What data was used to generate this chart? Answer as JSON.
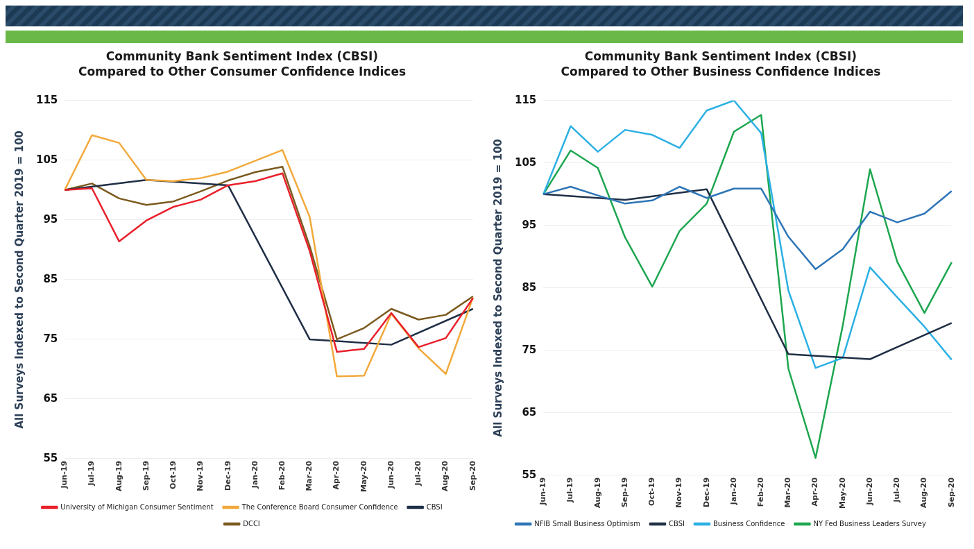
{
  "chart_data": [
    {
      "type": "line",
      "title": "Community Bank Sentiment Index (CBSI)",
      "subtitle": "Compared to Other Consumer Confidence Indices",
      "ylabel": "All Surveys Indexed to Second Quarter 2019 = 100",
      "categories": [
        "Jun-19",
        "Jul-19",
        "Aug-19",
        "Sep-19",
        "Oct-19",
        "Nov-19",
        "Dec-19",
        "Jan-20",
        "Feb-20",
        "Mar-20",
        "Apr-20",
        "May-20",
        "Jun-20",
        "Jul-20",
        "Aug-20",
        "Sep-20"
      ],
      "series": [
        {
          "name": "University of Michigan Consumer Sentiment",
          "color": "#e8202a",
          "values": [
            100,
            100.3,
            91.4,
            94.9,
            97.2,
            98.4,
            100.8,
            101.5,
            102.8,
            89.8,
            72.9,
            73.4,
            79.4,
            73.7,
            75.2,
            81.9
          ]
        },
        {
          "name": "The Conference Board Consumer Confidence",
          "color": "#f2a93b",
          "values": [
            100,
            109.2,
            107.9,
            101.7,
            101.5,
            102,
            103.1,
            104.9,
            106.7,
            95.5,
            68.8,
            68.9,
            79.3,
            73.5,
            69.2,
            82
          ]
        },
        {
          "name": "CBSI",
          "color": "#1f2f46",
          "values": [
            100,
            null,
            null,
            101.7,
            null,
            null,
            100.8,
            null,
            null,
            75,
            null,
            null,
            74.1,
            null,
            null,
            80.1
          ]
        },
        {
          "name": "DCCI",
          "color": "#7b5a1e",
          "values": [
            100,
            101.1,
            98.6,
            97.5,
            98.1,
            99.8,
            101.6,
            103,
            103.9,
            90.6,
            75,
            76.9,
            80.1,
            78.3,
            79.1,
            82.2
          ]
        }
      ],
      "ylim": [
        55,
        115
      ],
      "yticks": [
        55,
        65,
        75,
        85,
        95,
        105,
        115
      ],
      "grid": "y",
      "legend": "bottom",
      "marker": "none",
      "line_style": "solid"
    },
    {
      "type": "line",
      "title": "Community Bank Sentiment Index (CBSI)",
      "subtitle": "Compared to Other Business Confidence Indices",
      "ylabel": "All Surveys Indexed to Second Quarter 2019 = 100",
      "categories": [
        "Jun-19",
        "Jul-19",
        "Aug-19",
        "Sep-19",
        "Oct-19",
        "Nov-19",
        "Dec-19",
        "Jan-20",
        "Feb-20",
        "Mar-20",
        "Apr-20",
        "May-20",
        "Jun-20",
        "Jul-20",
        "Aug-20",
        "Sep-20"
      ],
      "series": [
        {
          "name": "NFIB Small Business Optimism",
          "color": "#2e75b6",
          "values": [
            100,
            101.2,
            99.8,
            98.5,
            99,
            101.2,
            99.4,
            100.9,
            100.9,
            93.2,
            88,
            91.2,
            97.2,
            95.5,
            96.9,
            100.5
          ]
        },
        {
          "name": "CBSI",
          "color": "#1f2f46",
          "values": [
            100,
            null,
            null,
            99.1,
            null,
            null,
            100.8,
            null,
            null,
            74.4,
            null,
            null,
            73.6,
            null,
            null,
            79.4
          ]
        },
        {
          "name": "Business Confidence",
          "color": "#2bb0e4",
          "values": [
            100,
            110.9,
            106.8,
            110.3,
            109.5,
            107.4,
            113.4,
            115,
            109.8,
            84.6,
            72.2,
            73.8,
            88.3,
            83.5,
            78.8,
            73.5
          ]
        },
        {
          "name": "NY Fed Business Leaders Survey",
          "color": "#1da64f",
          "values": [
            100,
            107,
            104.2,
            93.1,
            85.2,
            94.1,
            98.5,
            110,
            112.7,
            72.1,
            57.8,
            79,
            104,
            89.2,
            81,
            89.1
          ]
        }
      ],
      "ylim": [
        55,
        115
      ],
      "yticks": [
        55,
        65,
        75,
        85,
        95,
        105,
        115
      ],
      "grid": "y",
      "legend": "bottom",
      "marker": "none",
      "line_style": "solid"
    }
  ]
}
